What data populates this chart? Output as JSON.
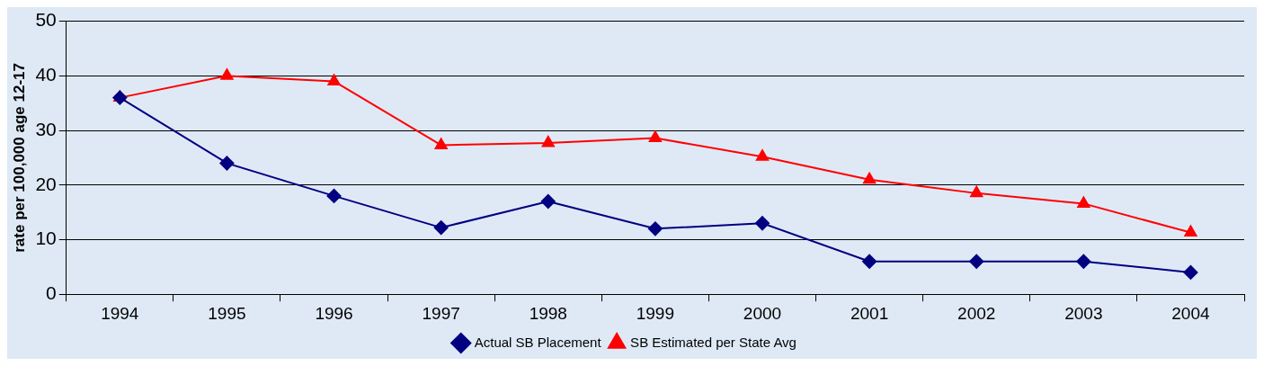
{
  "chart_data": {
    "type": "line",
    "ylabel": "rate per 100,000 age 12-17",
    "categories": [
      "1994",
      "1995",
      "1996",
      "1997",
      "1998",
      "1999",
      "2000",
      "2001",
      "2002",
      "2003",
      "2004"
    ],
    "series": [
      {
        "name": "SB Estimated per State Avg",
        "color": "#ff0000",
        "marker": "triangle",
        "values": [
          36,
          40,
          39,
          27.3,
          27.7,
          28.6,
          25.2,
          21,
          18.5,
          16.6,
          11.3
        ]
      },
      {
        "name": "Actual SB Placement",
        "color": "#000080",
        "marker": "diamond",
        "values": [
          36,
          24,
          18,
          12.2,
          17,
          12,
          13,
          6,
          6,
          6,
          4
        ]
      }
    ],
    "ylim": [
      0,
      50
    ],
    "yticks": [
      0,
      10,
      20,
      30,
      40,
      50
    ],
    "grid": "y",
    "legend": "bottom",
    "line_style": "solid"
  }
}
